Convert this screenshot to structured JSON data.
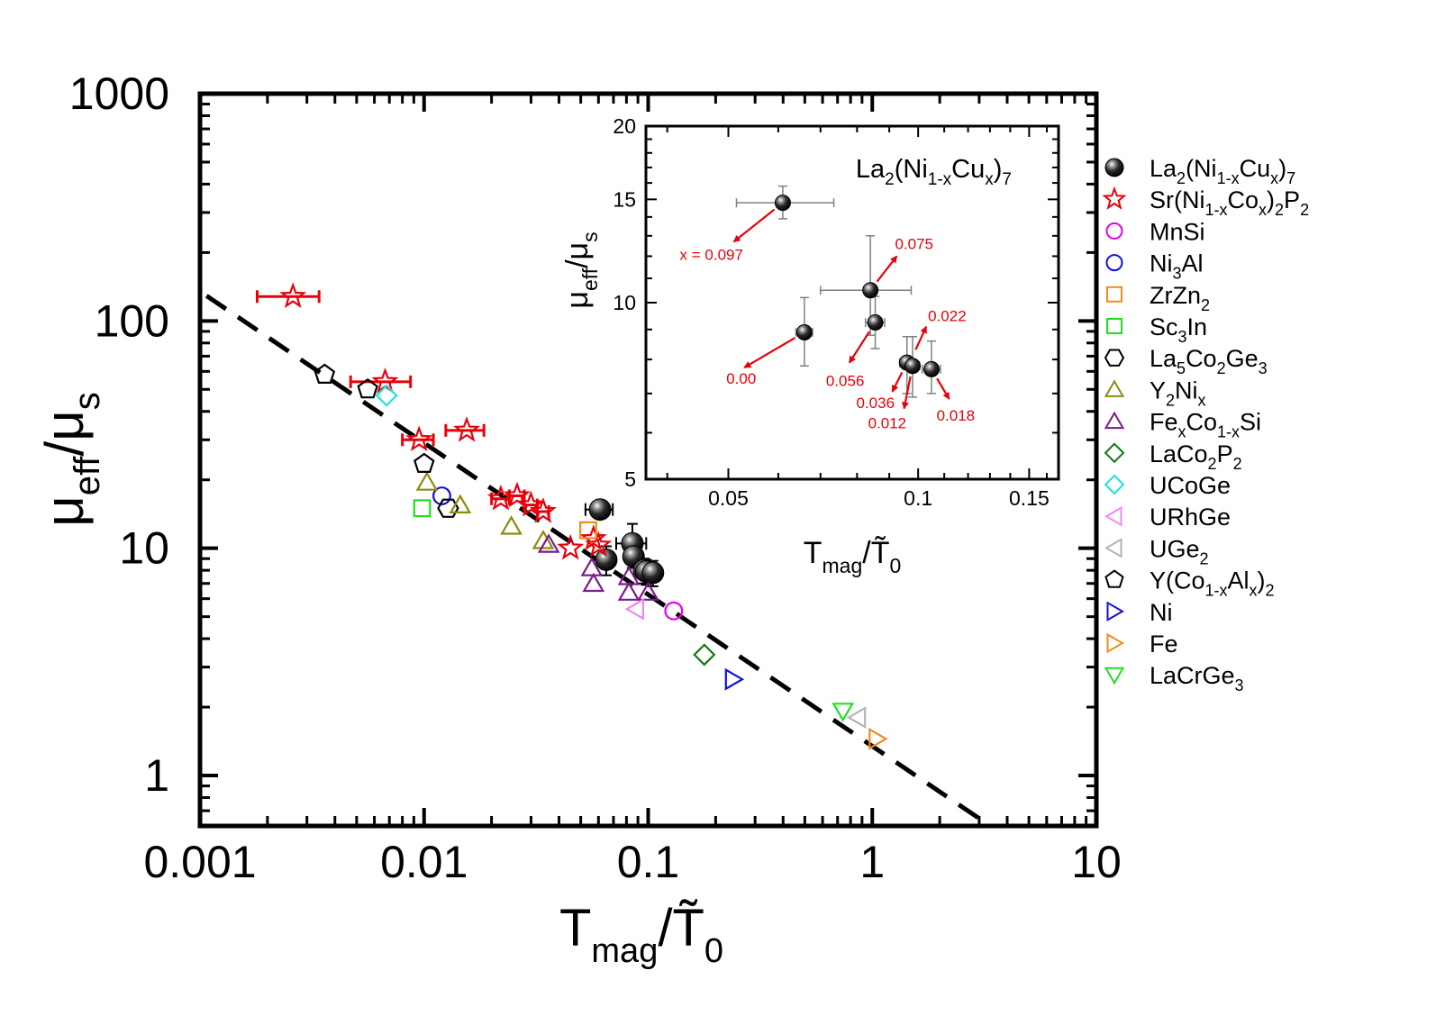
{
  "colors": {
    "black": "#000000",
    "red": "#e8000a",
    "magenta": "#e600e6",
    "blue": "#1010d8",
    "orange": "#f08c1e",
    "green_light": "#22dd22",
    "olive": "#8c8c10",
    "purple": "#7a1a8c",
    "green_dark": "#0e7a0e",
    "cyan": "#22e0e0",
    "pink": "#ee88ee",
    "gray": "#b4b4b4",
    "errbar_gray": "#808080"
  },
  "chart_data": [
    {
      "id": "main",
      "type": "scatter",
      "xscale": "log",
      "yscale": "log",
      "xlim": [
        0.001,
        10
      ],
      "ylim": [
        0.6,
        1000
      ],
      "x_ticks": [
        "0.001",
        "0.01",
        "0.1",
        "1",
        "10"
      ],
      "x_tick_values": [
        0.001,
        0.01,
        0.1,
        1,
        10
      ],
      "y_ticks": [
        "1",
        "10",
        "100",
        "1000"
      ],
      "y_tick_values": [
        1,
        10,
        100,
        1000
      ],
      "xlabel": {
        "main": "T",
        "sub": "mag",
        "slash": "/",
        "main2": "T̃",
        "sub2": "0"
      },
      "ylabel": {
        "main": "μ",
        "sub": "eff",
        "slash": "/",
        "main2": "μ",
        "sub2": "s"
      },
      "fit_line": {
        "style": "dashed",
        "points": [
          [
            0.00107,
            129
          ],
          [
            3.2,
            0.62
          ]
        ]
      },
      "series": [
        {
          "name": "La2(Ni1-xCux)7",
          "marker": "sphere",
          "color": "#000000",
          "points": [
            [
              0.061,
              14.8,
              0.0085,
              0
            ],
            [
              0.085,
              10.5,
              0.013,
              2.3
            ],
            [
              0.086,
              9.2,
              0.003,
              1.0
            ],
            [
              0.065,
              8.9,
              0.005,
              1.3
            ],
            [
              0.096,
              8.0,
              0.004,
              1.0
            ],
            [
              0.098,
              7.9,
              0.004,
              1.0
            ],
            [
              0.105,
              7.8,
              0.004,
              1.0
            ]
          ]
        },
        {
          "name": "Sr(Ni1-xCox)2P2",
          "marker": "star",
          "color": "#e8000a",
          "points": [
            [
              0.0026,
              128,
              0.0008
            ],
            [
              0.0067,
              54,
              0.002
            ],
            [
              0.0095,
              30,
              0.0015
            ],
            [
              0.0155,
              33,
              0.003
            ],
            [
              0.022,
              16.5,
              0.002
            ],
            [
              0.026,
              17,
              0.002
            ],
            [
              0.03,
              15.5,
              0.002
            ],
            [
              0.034,
              14.5,
              0.002
            ],
            [
              0.045,
              10,
              0
            ],
            [
              0.057,
              11,
              0
            ],
            [
              0.06,
              10.3,
              0
            ]
          ]
        },
        {
          "name": "MnSi",
          "marker": "circle",
          "color": "#e600e6",
          "points": [
            [
              0.13,
              5.3
            ]
          ]
        },
        {
          "name": "Ni3Al",
          "marker": "circle",
          "color": "#1010d8",
          "points": [
            [
              0.012,
              17
            ]
          ]
        },
        {
          "name": "ZrZn2",
          "marker": "square",
          "color": "#f08c1e",
          "points": [
            [
              0.054,
              12
            ]
          ]
        },
        {
          "name": "Sc3In",
          "marker": "square",
          "color": "#22dd22",
          "points": [
            [
              0.0098,
              15
            ]
          ]
        },
        {
          "name": "La5Co2Ge3",
          "marker": "hexagon",
          "color": "#000000",
          "points": [
            [
              0.0128,
              15
            ]
          ]
        },
        {
          "name": "Y2Nix",
          "marker": "triangle-up",
          "color": "#8c8c10",
          "points": [
            [
              0.0103,
              19.5
            ],
            [
              0.0145,
              15.5
            ],
            [
              0.0245,
              12.5
            ],
            [
              0.034,
              10.8
            ]
          ]
        },
        {
          "name": "FexCo1-xSi",
          "marker": "triangle-up",
          "color": "#7a1a8c",
          "points": [
            [
              0.036,
              10.4
            ],
            [
              0.056,
              8.2
            ],
            [
              0.057,
              7.0
            ],
            [
              0.082,
              7.5
            ],
            [
              0.082,
              6.4
            ],
            [
              0.1,
              6.4
            ]
          ]
        },
        {
          "name": "LaCo2P2",
          "marker": "diamond",
          "color": "#0e7a0e",
          "points": [
            [
              0.178,
              3.4
            ]
          ]
        },
        {
          "name": "UCoGe",
          "marker": "diamond",
          "color": "#22e0e0",
          "points": [
            [
              0.0068,
              47
            ]
          ]
        },
        {
          "name": "URhGe",
          "marker": "triangle-left",
          "color": "#ee88ee",
          "points": [
            [
              0.088,
              5.4
            ]
          ]
        },
        {
          "name": "UGe2",
          "marker": "triangle-left",
          "color": "#b4b4b4",
          "points": [
            [
              0.86,
              1.8
            ]
          ]
        },
        {
          "name": "Y(Co1-xAlx)2",
          "marker": "pentagon",
          "color": "#000000",
          "points": [
            [
              0.0036,
              58
            ],
            [
              0.0056,
              50
            ],
            [
              0.01,
              23.5
            ]
          ]
        },
        {
          "name": "Ni",
          "marker": "triangle-right",
          "color": "#1010d8",
          "points": [
            [
              0.24,
              2.65
            ]
          ]
        },
        {
          "name": "Fe",
          "marker": "triangle-right",
          "color": "#f08c1e",
          "points": [
            [
              1.05,
              1.45
            ]
          ]
        },
        {
          "name": "LaCrGe3",
          "marker": "triangle-down",
          "color": "#22dd22",
          "points": [
            [
              0.74,
              1.92
            ]
          ]
        }
      ]
    },
    {
      "id": "inset",
      "type": "scatter",
      "xscale": "log",
      "yscale": "log",
      "xlim": [
        0.037,
        0.167
      ],
      "ylim": [
        5,
        20
      ],
      "x_ticks": [
        "0.05",
        "0.1",
        "0.15"
      ],
      "x_tick_values": [
        0.05,
        0.1,
        0.15
      ],
      "y_ticks": [
        "5",
        "10",
        "15",
        "20"
      ],
      "y_tick_values": [
        5,
        10,
        15,
        20
      ],
      "title": {
        "main": "La",
        "s1": "2",
        "p2": "(Ni",
        "s2": "1-x",
        "p3": "Cu",
        "s3": "x",
        "p4": ")",
        "s4": "7"
      },
      "xlabel": {
        "main": "T",
        "sub": "mag",
        "slash": "/",
        "main2": "T̃",
        "sub2": "0"
      },
      "ylabel": {
        "main": "μ",
        "sub": "eff",
        "slash": "/",
        "main2": "μ",
        "sub2": "s"
      },
      "points": [
        {
          "x": 0.061,
          "y": 14.8,
          "xerr": [
            0.0095,
            0.0125
          ],
          "yerr": [
            0.9,
            1.0
          ],
          "label": "x = 0.097",
          "arrow_to": [
            0.051,
            12.7
          ]
        },
        {
          "x": 0.066,
          "y": 8.9,
          "xerr": [
            0.002,
            0.002
          ],
          "yerr": [
            1.1,
            1.3
          ],
          "label": "0.00",
          "arrow_to": [
            0.053,
            7.75
          ]
        },
        {
          "x": 0.084,
          "y": 10.5,
          "xerr": [
            0.014,
            0.0135
          ],
          "yerr": [
            1.7,
            2.5
          ],
          "label": "0.075",
          "arrow_to": [
            0.0925,
            12.0
          ]
        },
        {
          "x": 0.0855,
          "y": 9.25,
          "xerr": [
            0.003,
            0.003
          ],
          "yerr": [
            0.9,
            1.0
          ],
          "label": "0.056",
          "arrow_to": [
            0.0778,
            7.9
          ]
        },
        {
          "x": 0.096,
          "y": 7.9,
          "xerr": [
            0.0025,
            0.0025
          ],
          "yerr": [
            0.9,
            0.85
          ],
          "label": "0.036",
          "arrow_to": [
            0.091,
            7.05
          ]
        },
        {
          "x": 0.098,
          "y": 7.8,
          "xerr": [
            0.0025,
            0.0025
          ],
          "yerr": [
            0.9,
            0.95
          ],
          "label": "0.012",
          "arrow_to": [
            0.095,
            6.6
          ]
        },
        {
          "x": 0.105,
          "y": 7.7,
          "xerr": [
            0.0035,
            0.0035
          ],
          "yerr": [
            0.7,
            0.9
          ],
          "label": "0.018",
          "arrow_to": [
            0.112,
            6.85
          ]
        },
        {
          "x": 0.0975,
          "y": 8.0,
          "xerr": [
            0,
            0
          ],
          "yerr": [
            0,
            0
          ],
          "label": "0.022",
          "arrow_to": [
            0.103,
            9.1
          ]
        }
      ]
    }
  ],
  "legend": {
    "position": "right",
    "items": [
      {
        "marker": "sphere",
        "color": "#000000",
        "parts": [
          [
            "La",
            ""
          ],
          [
            "2",
            "sub"
          ],
          [
            "(Ni",
            ""
          ],
          [
            "1-x",
            "sub"
          ],
          [
            "Cu",
            ""
          ],
          [
            "x",
            "sub"
          ],
          [
            ")",
            ""
          ],
          [
            "7",
            "sub"
          ]
        ]
      },
      {
        "marker": "star",
        "color": "#e8000a",
        "parts": [
          [
            "Sr(Ni",
            ""
          ],
          [
            "1-x",
            "sub"
          ],
          [
            "Co",
            ""
          ],
          [
            "x",
            "sub"
          ],
          [
            ")",
            ""
          ],
          [
            "2",
            "sub"
          ],
          [
            "P",
            ""
          ],
          [
            "2",
            "sub"
          ]
        ]
      },
      {
        "marker": "circle",
        "color": "#e600e6",
        "parts": [
          [
            "MnSi",
            ""
          ]
        ]
      },
      {
        "marker": "circle",
        "color": "#1010d8",
        "parts": [
          [
            "Ni",
            ""
          ],
          [
            "3",
            "sub"
          ],
          [
            "Al",
            ""
          ]
        ]
      },
      {
        "marker": "square",
        "color": "#f08c1e",
        "parts": [
          [
            "ZrZn",
            ""
          ],
          [
            "2",
            "sub"
          ]
        ]
      },
      {
        "marker": "square",
        "color": "#22dd22",
        "parts": [
          [
            "Sc",
            ""
          ],
          [
            "3",
            "sub"
          ],
          [
            "In",
            ""
          ]
        ]
      },
      {
        "marker": "hexagon",
        "color": "#000000",
        "parts": [
          [
            "La",
            ""
          ],
          [
            "5",
            "sub"
          ],
          [
            "Co",
            ""
          ],
          [
            "2",
            "sub"
          ],
          [
            "Ge",
            ""
          ],
          [
            "3",
            "sub"
          ]
        ]
      },
      {
        "marker": "triangle-up",
        "color": "#8c8c10",
        "parts": [
          [
            "Y",
            ""
          ],
          [
            "2",
            "sub"
          ],
          [
            "Ni",
            ""
          ],
          [
            "x",
            "sub"
          ]
        ]
      },
      {
        "marker": "triangle-up",
        "color": "#7a1a8c",
        "parts": [
          [
            "Fe",
            ""
          ],
          [
            "x",
            "sub"
          ],
          [
            "Co",
            ""
          ],
          [
            "1-x",
            "sub"
          ],
          [
            "Si",
            ""
          ]
        ]
      },
      {
        "marker": "diamond",
        "color": "#0e7a0e",
        "parts": [
          [
            "LaCo",
            ""
          ],
          [
            "2",
            "sub"
          ],
          [
            "P",
            ""
          ],
          [
            "2",
            "sub"
          ]
        ]
      },
      {
        "marker": "diamond",
        "color": "#22e0e0",
        "parts": [
          [
            "UCoGe",
            ""
          ]
        ]
      },
      {
        "marker": "triangle-left",
        "color": "#ee88ee",
        "parts": [
          [
            "URhGe",
            ""
          ]
        ]
      },
      {
        "marker": "triangle-left",
        "color": "#b4b4b4",
        "parts": [
          [
            "UGe",
            ""
          ],
          [
            "2",
            "sub"
          ]
        ]
      },
      {
        "marker": "pentagon",
        "color": "#000000",
        "parts": [
          [
            "Y(Co",
            ""
          ],
          [
            "1-x",
            "sub"
          ],
          [
            "Al",
            ""
          ],
          [
            "x",
            "sub"
          ],
          [
            ")",
            ""
          ],
          [
            "2",
            "sub"
          ]
        ]
      },
      {
        "marker": "triangle-right",
        "color": "#1010d8",
        "parts": [
          [
            "Ni",
            ""
          ]
        ]
      },
      {
        "marker": "triangle-right",
        "color": "#f08c1e",
        "parts": [
          [
            "Fe",
            ""
          ]
        ]
      },
      {
        "marker": "triangle-down",
        "color": "#22dd22",
        "parts": [
          [
            "LaCrGe",
            ""
          ],
          [
            "3",
            "sub"
          ]
        ]
      }
    ]
  }
}
